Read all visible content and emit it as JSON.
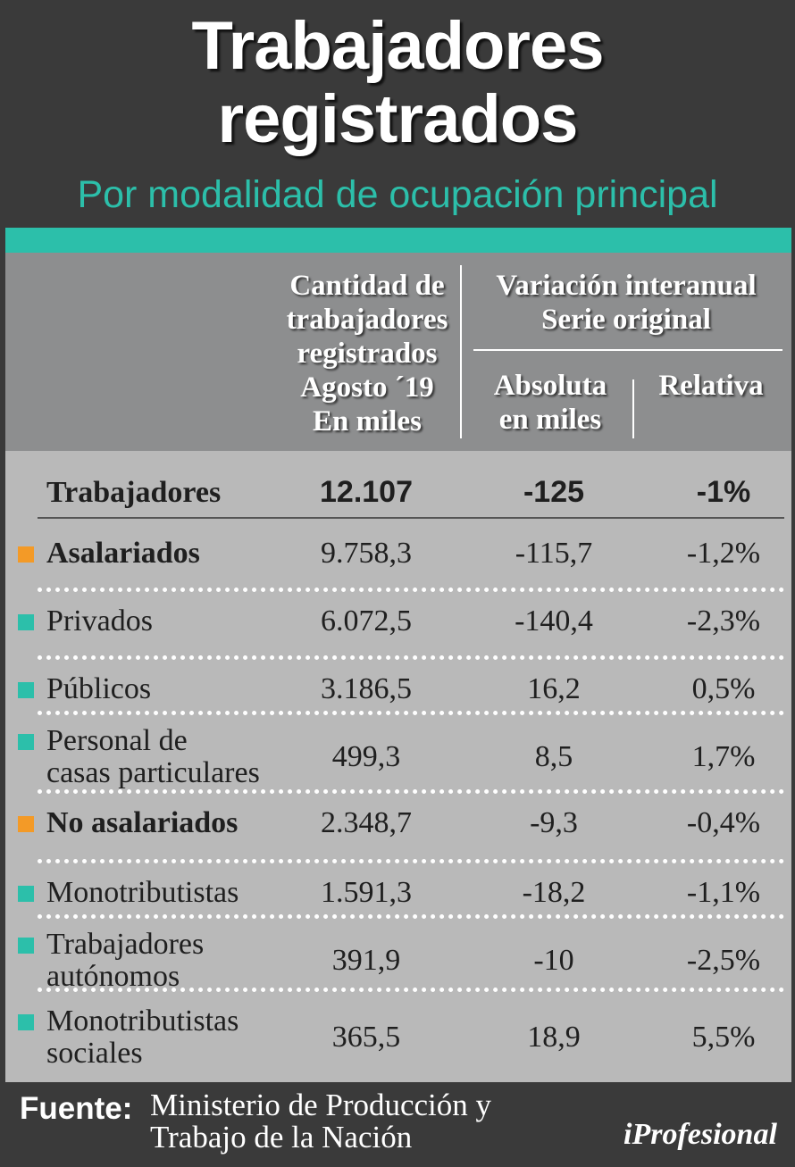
{
  "title_line1": "Trabajadores",
  "title_line2": "registrados",
  "subtitle": "Por modalidad de ocupación principal",
  "headers": {
    "cantidad": [
      "Cantidad de",
      "trabajadores",
      "registrados",
      "Agosto ´19",
      "En miles"
    ],
    "variacion": [
      "Variación interanual",
      "Serie original"
    ],
    "absoluta": [
      "Absoluta",
      "en miles"
    ],
    "relativa": "Relativa"
  },
  "total": {
    "label": "Trabajadores",
    "cantidad": "12.107",
    "absoluta": "-125",
    "relativa": "-1%"
  },
  "rows": [
    {
      "label": [
        "Asalariados"
      ],
      "cantidad": "9.758,3",
      "absoluta": "-115,7",
      "relativa": "-1,2%",
      "bold": true,
      "marker": "orange"
    },
    {
      "label": [
        "Privados"
      ],
      "cantidad": "6.072,5",
      "absoluta": "-140,4",
      "relativa": "-2,3%",
      "bold": false,
      "marker": "teal"
    },
    {
      "label": [
        "Públicos"
      ],
      "cantidad": "3.186,5",
      "absoluta": "16,2",
      "relativa": "0,5%",
      "bold": false,
      "marker": "teal"
    },
    {
      "label": [
        "Personal de",
        "casas particulares"
      ],
      "cantidad": "499,3",
      "absoluta": "8,5",
      "relativa": "1,7%",
      "bold": false,
      "marker": "teal"
    },
    {
      "label": [
        "No asalariados"
      ],
      "cantidad": "2.348,7",
      "absoluta": "-9,3",
      "relativa": "-0,4%",
      "bold": true,
      "marker": "orange"
    },
    {
      "label": [
        "Monotributistas"
      ],
      "cantidad": "1.591,3",
      "absoluta": "-18,2",
      "relativa": "-1,1%",
      "bold": false,
      "marker": "teal"
    },
    {
      "label": [
        "Trabajadores",
        "autónomos"
      ],
      "cantidad": "391,9",
      "absoluta": "-10",
      "relativa": "-2,5%",
      "bold": false,
      "marker": "teal"
    },
    {
      "label": [
        "Monotributistas",
        "sociales"
      ],
      "cantidad": "365,5",
      "absoluta": "18,9",
      "relativa": "5,5%",
      "bold": false,
      "marker": "teal"
    }
  ],
  "footer": {
    "label": "Fuente:",
    "text": [
      "Ministerio de Producción y",
      "Trabajo de la Nación"
    ],
    "logo": "iProfesional"
  },
  "colors": {
    "teal": "#2cbfaa",
    "orange": "#f39a27",
    "dark": "#3a3a3a"
  }
}
